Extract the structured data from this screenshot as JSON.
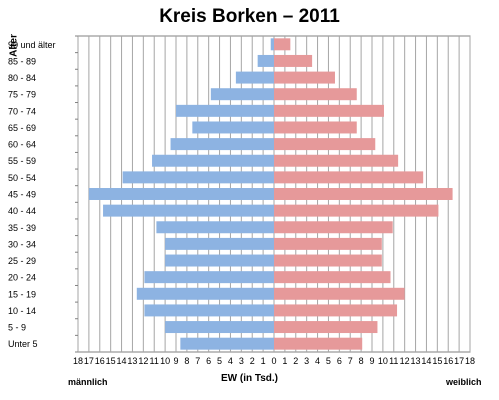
{
  "chart_data": {
    "type": "bar",
    "title": "Kreis Borken – 2011",
    "xlabel": "EW (in Tsd.)",
    "ylabel": "Alter",
    "left_label": "männlich",
    "right_label": "weiblich",
    "xlim": [
      -18,
      18
    ],
    "xticks": [
      "18",
      "17",
      "16",
      "15",
      "14",
      "13",
      "12",
      "11",
      "10",
      "9",
      "8",
      "7",
      "6",
      "5",
      "4",
      "3",
      "2",
      "1",
      "0",
      "1",
      "2",
      "3",
      "4",
      "5",
      "6",
      "7",
      "8",
      "9",
      "10",
      "11",
      "12",
      "13",
      "14",
      "15",
      "16",
      "17",
      "18"
    ],
    "grid": true,
    "categories": [
      "90 und älter",
      "85 - 89",
      "80 - 84",
      "75 - 79",
      "70 - 74",
      "65 - 69",
      "60 - 64",
      "55 - 59",
      "50 - 54",
      "45 - 49",
      "40 - 44",
      "35 - 39",
      "30 - 34",
      "25 - 29",
      "20 - 24",
      "15 - 19",
      "10 - 14",
      "5 - 9",
      "Unter 5"
    ],
    "series": [
      {
        "name": "männlich",
        "color": "#8db3e2",
        "values": [
          0.3,
          1.5,
          3.5,
          5.8,
          9.0,
          7.5,
          9.5,
          11.2,
          13.9,
          17.0,
          15.7,
          10.8,
          10.0,
          10.0,
          11.9,
          12.6,
          11.9,
          10.0,
          8.6
        ]
      },
      {
        "name": "weiblich",
        "color": "#e6999a",
        "values": [
          1.5,
          3.5,
          5.6,
          7.6,
          10.1,
          7.6,
          9.3,
          11.4,
          13.7,
          16.4,
          15.1,
          10.9,
          9.9,
          9.9,
          10.7,
          12.0,
          11.3,
          9.5,
          8.1
        ]
      }
    ]
  }
}
